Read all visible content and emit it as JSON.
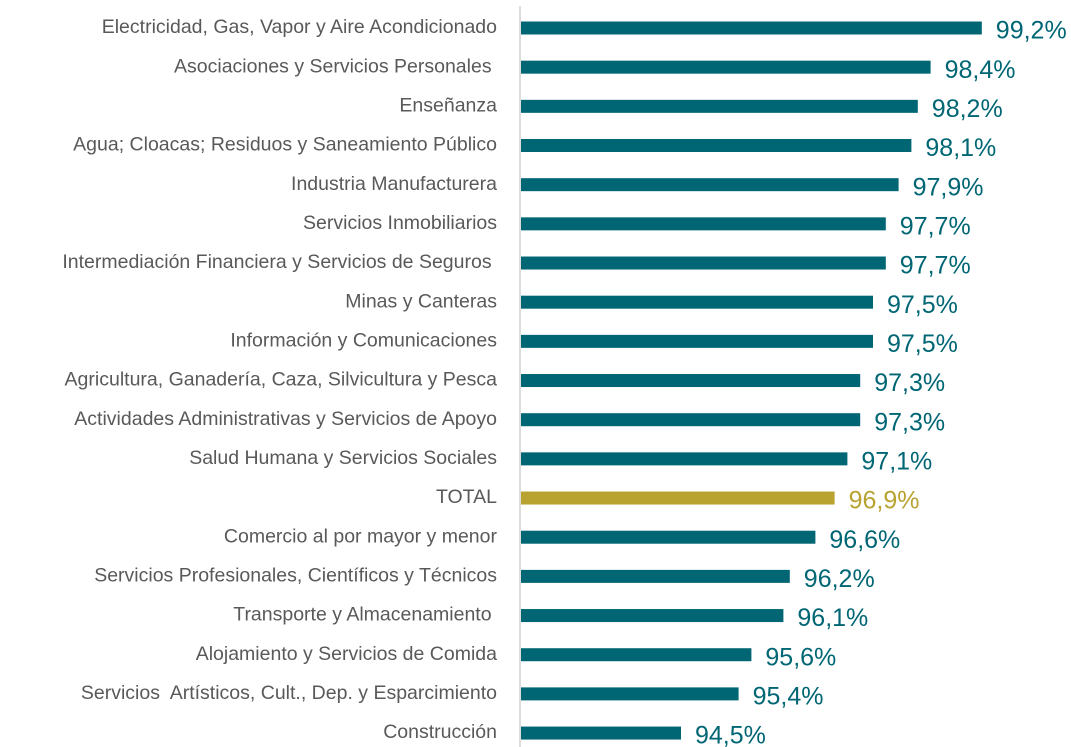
{
  "chart_data": {
    "type": "barh",
    "categories": [
      "Electricidad, Gas, Vapor y Aire Acondicionado",
      "Asociaciones y Servicios Personales ",
      "Enseñanza",
      "Agua; Cloacas; Residuos y Saneamiento Público",
      "Industria Manufacturera",
      "Servicios Inmobiliarios",
      "Intermediación Financiera y Servicios de Seguros ",
      "Minas y Canteras",
      "Información y Comunicaciones",
      "Agricultura, Ganadería, Caza, Silvicultura y Pesca",
      "Actividades Administrativas y Servicios de Apoyo",
      "Salud Humana y Servicios Sociales",
      "TOTAL",
      "Comercio al por mayor y menor",
      "Servicios Profesionales, Científicos y Técnicos",
      "Transporte y Almacenamiento ",
      "Alojamiento y Servicios de Comida",
      "Servicios  Artísticos, Cult., Dep. y Esparcimiento",
      "Construcción"
    ],
    "values": [
      99.2,
      98.4,
      98.2,
      98.1,
      97.9,
      97.7,
      97.7,
      97.5,
      97.5,
      97.3,
      97.3,
      97.1,
      96.9,
      96.6,
      96.2,
      96.1,
      95.6,
      95.4,
      94.5
    ],
    "value_labels": [
      "99,2%",
      "98,4%",
      "98,2%",
      "98,1%",
      "97,9%",
      "97,7%",
      "97,7%",
      "97,5%",
      "97,5%",
      "97,3%",
      "97,3%",
      "97,1%",
      "96,9%",
      "96,6%",
      "96,2%",
      "96,1%",
      "95,6%",
      "95,4%",
      "94,5%"
    ],
    "colors": [
      "#006674",
      "#006674",
      "#006674",
      "#006674",
      "#006674",
      "#006674",
      "#006674",
      "#006674",
      "#006674",
      "#006674",
      "#006674",
      "#006674",
      "#b8a330",
      "#006674",
      "#006674",
      "#006674",
      "#006674",
      "#006674",
      "#006674"
    ],
    "xlim": [
      92,
      100
    ]
  }
}
